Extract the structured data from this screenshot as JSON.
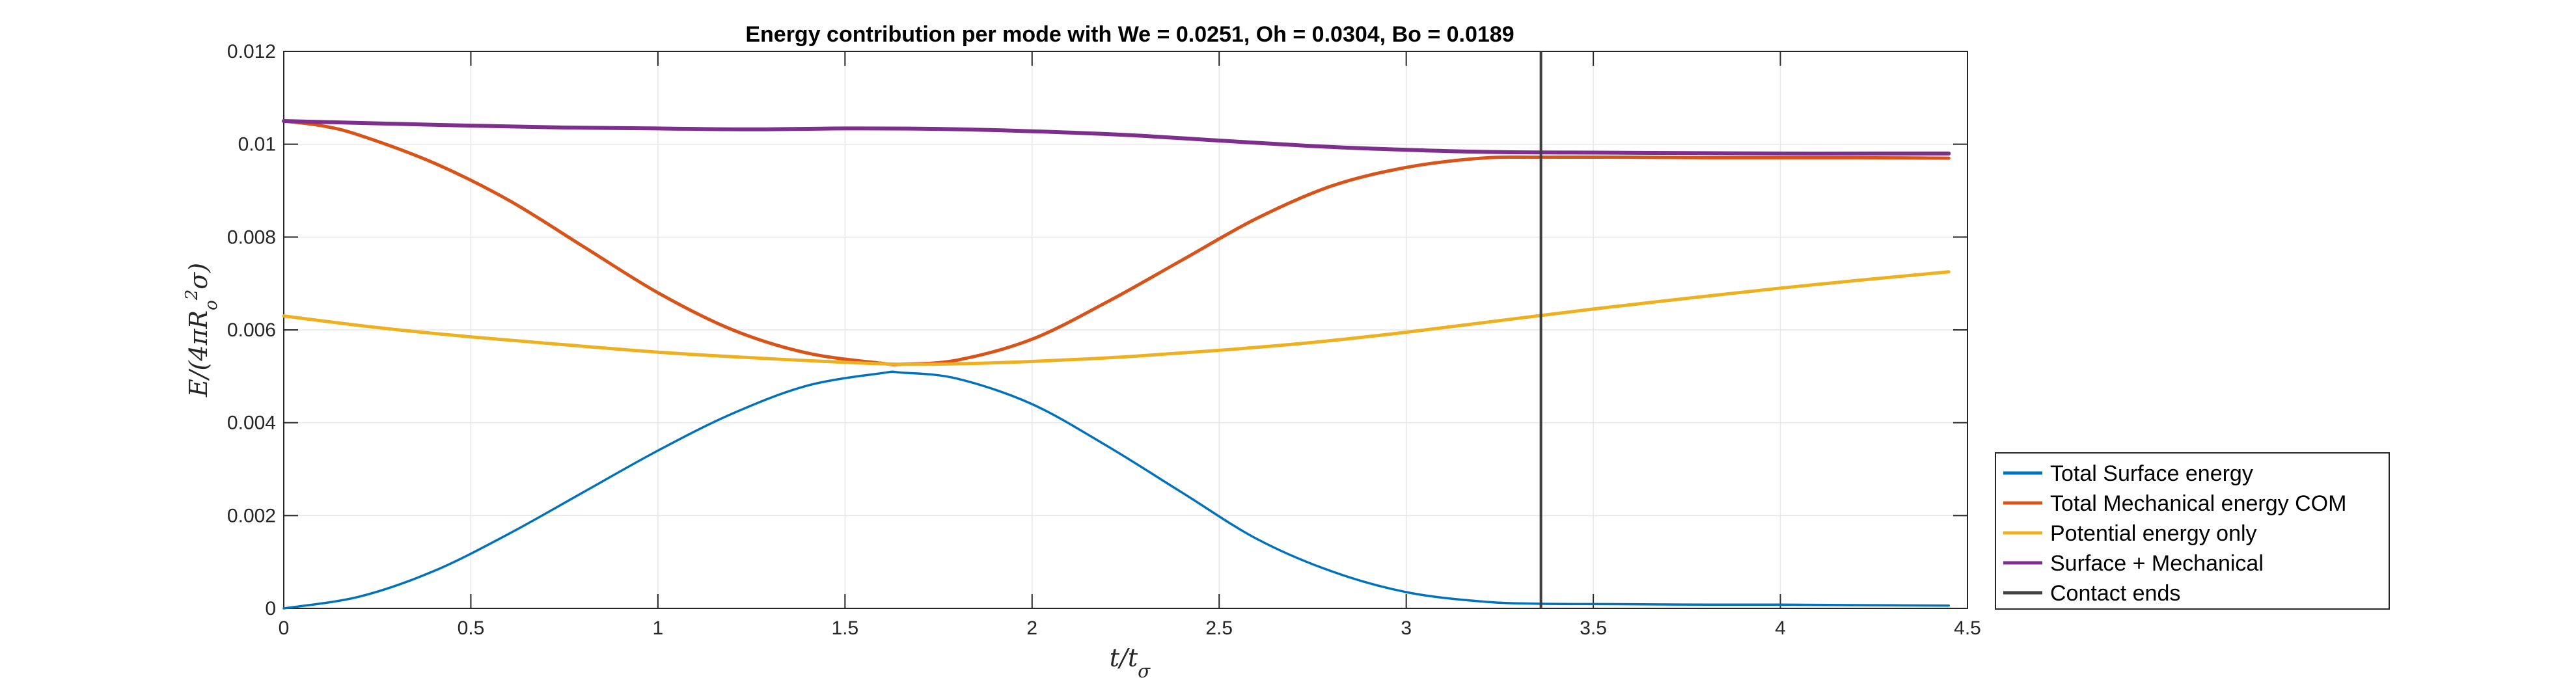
{
  "chart_data": {
    "type": "line",
    "title": "Energy contribution per mode with We = 0.0251, Oh = 0.0304, Bo = 0.0189",
    "xlabel": "t/tσ",
    "ylabel": "E/(4πR_o²σ)",
    "xlim": [
      0,
      4.5
    ],
    "ylim": [
      0,
      0.012
    ],
    "xticks": [
      "0",
      "0.5",
      "1",
      "1.5",
      "2",
      "2.5",
      "3",
      "3.5",
      "4",
      "4.5"
    ],
    "yticks": [
      "0",
      "0.002",
      "0.004",
      "0.006",
      "0.008",
      "0.01",
      "0.012"
    ],
    "grid": true,
    "legend_position": "outside-bottom-right",
    "series": [
      {
        "name": "Total Surface energy",
        "color": "#0072BD",
        "x": [
          0,
          0.2,
          0.4,
          0.6,
          0.8,
          1.0,
          1.2,
          1.4,
          1.6,
          1.65,
          1.8,
          2.0,
          2.2,
          2.4,
          2.6,
          2.8,
          3.0,
          3.2,
          3.36,
          3.6,
          3.8,
          4.0,
          4.2,
          4.45
        ],
        "y": [
          0,
          0.00025,
          0.0008,
          0.0016,
          0.0025,
          0.0034,
          0.0042,
          0.0048,
          0.00507,
          0.00508,
          0.00495,
          0.0044,
          0.0035,
          0.0025,
          0.0015,
          0.0008,
          0.00035,
          0.00015,
          0.0001,
          9e-05,
          8e-05,
          8e-05,
          7e-05,
          6e-05
        ]
      },
      {
        "name": "Total Mechanical energy COM",
        "color": "#D95319",
        "x": [
          0,
          0.1,
          0.2,
          0.4,
          0.6,
          0.8,
          1.0,
          1.2,
          1.4,
          1.6,
          1.65,
          1.8,
          2.0,
          2.2,
          2.4,
          2.6,
          2.8,
          3.0,
          3.2,
          3.36,
          3.6,
          3.8,
          4.0,
          4.2,
          4.45
        ],
        "y": [
          0.0105,
          0.0104,
          0.0102,
          0.0096,
          0.0088,
          0.0078,
          0.0068,
          0.006,
          0.0055,
          0.00528,
          0.00526,
          0.00535,
          0.0058,
          0.0066,
          0.0075,
          0.0084,
          0.0091,
          0.0095,
          0.0097,
          0.00972,
          0.00972,
          0.00971,
          0.00971,
          0.00971,
          0.0097
        ]
      },
      {
        "name": "Potential energy only",
        "color": "#EDB120",
        "x": [
          0,
          0.25,
          0.5,
          0.75,
          1.0,
          1.25,
          1.5,
          1.65,
          1.8,
          2.0,
          2.25,
          2.5,
          2.75,
          3.0,
          3.25,
          3.5,
          3.75,
          4.0,
          4.25,
          4.45
        ],
        "y": [
          0.0063,
          0.00605,
          0.00585,
          0.00568,
          0.00552,
          0.0054,
          0.0053,
          0.00526,
          0.00527,
          0.00532,
          0.00542,
          0.00556,
          0.00573,
          0.00595,
          0.0062,
          0.00645,
          0.00668,
          0.0069,
          0.0071,
          0.00725
        ]
      },
      {
        "name": "Surface + Mechanical",
        "color": "#7E2F8E",
        "x": [
          0,
          0.25,
          0.5,
          0.75,
          1.0,
          1.25,
          1.5,
          1.75,
          2.0,
          2.25,
          2.5,
          2.75,
          3.0,
          3.25,
          3.5,
          3.75,
          4.0,
          4.25,
          4.45
        ],
        "y": [
          0.0105,
          0.01045,
          0.0104,
          0.01036,
          0.01034,
          0.01032,
          0.01034,
          0.01033,
          0.01028,
          0.0102,
          0.01008,
          0.00996,
          0.00988,
          0.00983,
          0.00982,
          0.00981,
          0.0098,
          0.0098,
          0.0098
        ]
      }
    ],
    "vline": {
      "name": "Contact ends",
      "x": 3.36,
      "color": "#404040"
    }
  }
}
